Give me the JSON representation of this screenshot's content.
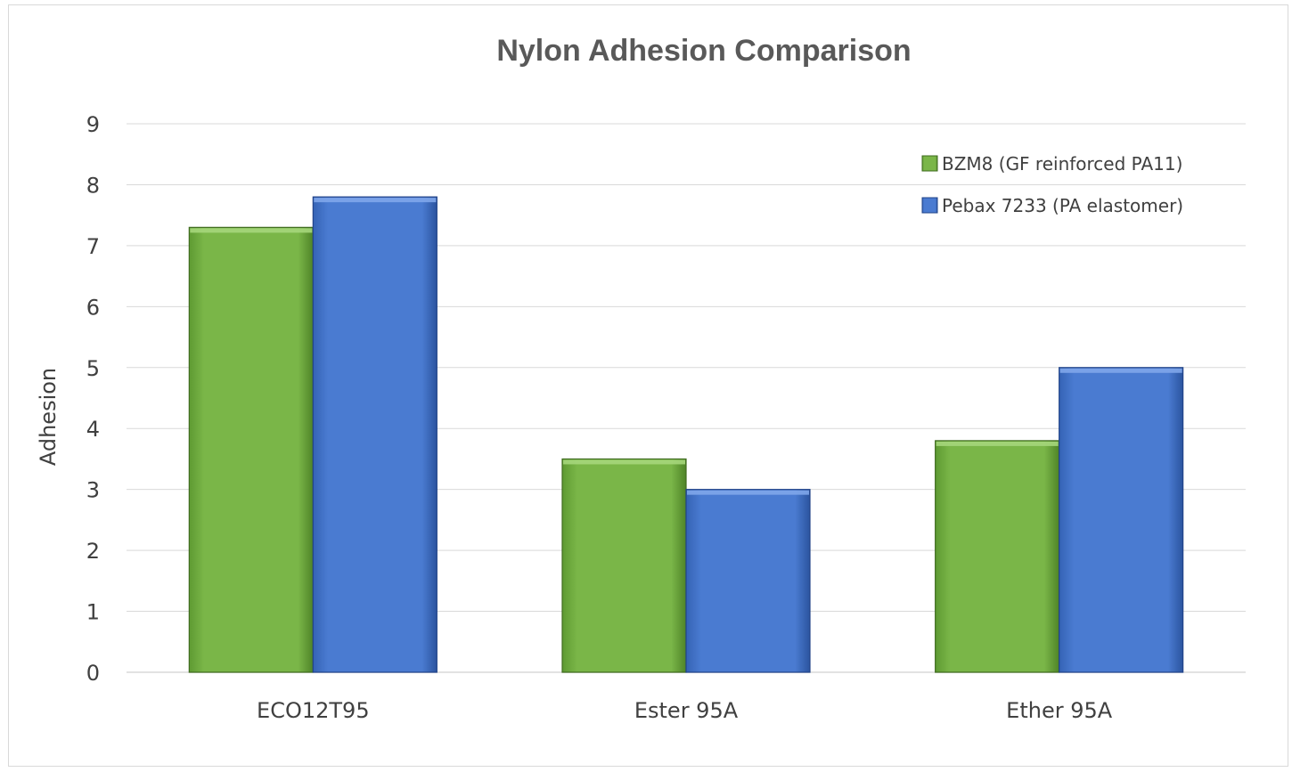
{
  "chart_data": {
    "type": "bar",
    "title": "Nylon Adhesion Comparison",
    "xlabel": "",
    "ylabel": "Adhesion",
    "ylim": [
      0,
      9
    ],
    "yticks": [
      0,
      1,
      2,
      3,
      4,
      5,
      6,
      7,
      8,
      9
    ],
    "categories": [
      "ECO12T95",
      "Ester 95A",
      "Ether 95A"
    ],
    "series": [
      {
        "name": "BZM8 (GF reinforced PA11)",
        "values": [
          7.3,
          3.5,
          3.8
        ],
        "color": "#7ab648"
      },
      {
        "name": "Pebax 7233 (PA elastomer)",
        "values": [
          7.8,
          3.0,
          5.0
        ],
        "color": "#4a7bd1"
      }
    ],
    "grid": true,
    "legend": "top-right"
  }
}
